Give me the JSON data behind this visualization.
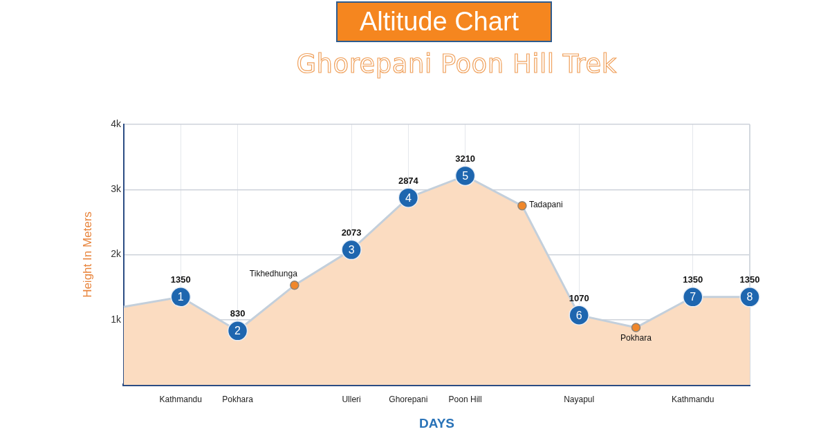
{
  "chart_data": {
    "type": "area",
    "title": "Altitude Chart",
    "subtitle": "Ghorepani Poon Hill Trek",
    "xlabel": "DAYS",
    "ylabel": "Height In Meters",
    "categories": [
      null,
      "Kathmandu",
      "Pokhara",
      null,
      "Ulleri",
      "Ghorepani",
      "Poon Hill",
      null,
      "Nayapul",
      null,
      "Kathmandu",
      null
    ],
    "ylim": [
      0,
      4000
    ],
    "yticks": [
      {
        "value": 1000,
        "label": "1k"
      },
      {
        "value": 2000,
        "label": "2k"
      },
      {
        "value": 3000,
        "label": "3k"
      },
      {
        "value": 4000,
        "label": "4k"
      }
    ],
    "grid": true,
    "series": [
      {
        "type": "area",
        "color": "#fbdcc1",
        "marker": "none",
        "values": [
          1200,
          1350,
          830,
          1530,
          2073,
          2874,
          3210,
          2750,
          1070,
          880,
          1350,
          1350
        ]
      },
      {
        "type": "scatter",
        "color": "#1e66af",
        "marker": "circle",
        "values": [
          null,
          1350,
          830,
          null,
          2073,
          2874,
          3210,
          null,
          1070,
          null,
          1350,
          1350
        ],
        "value_labels": [
          null,
          "1350",
          "830",
          null,
          "2073",
          "2874",
          "3210",
          null,
          "1070",
          null,
          "1350",
          "1350"
        ]
      },
      {
        "type": "scatter",
        "color": "#f0872a",
        "marker": "circle",
        "values": [
          null,
          null,
          null,
          1530,
          null,
          null,
          null,
          2750,
          null,
          880,
          null,
          null
        ]
      }
    ],
    "annotations": [
      {
        "text": "1",
        "y": 1350
      },
      {
        "text": "2",
        "y": 830
      },
      {
        "text": "3",
        "y": 2073
      },
      {
        "text": "4",
        "y": 2874
      },
      {
        "text": "5",
        "y": 3210
      },
      {
        "text": "6",
        "y": 1070
      },
      {
        "text": "7",
        "y": 1350
      },
      {
        "text": "8",
        "y": 1350
      },
      "Tikhedhunga",
      "Tadapani",
      "Pokhara"
    ]
  }
}
